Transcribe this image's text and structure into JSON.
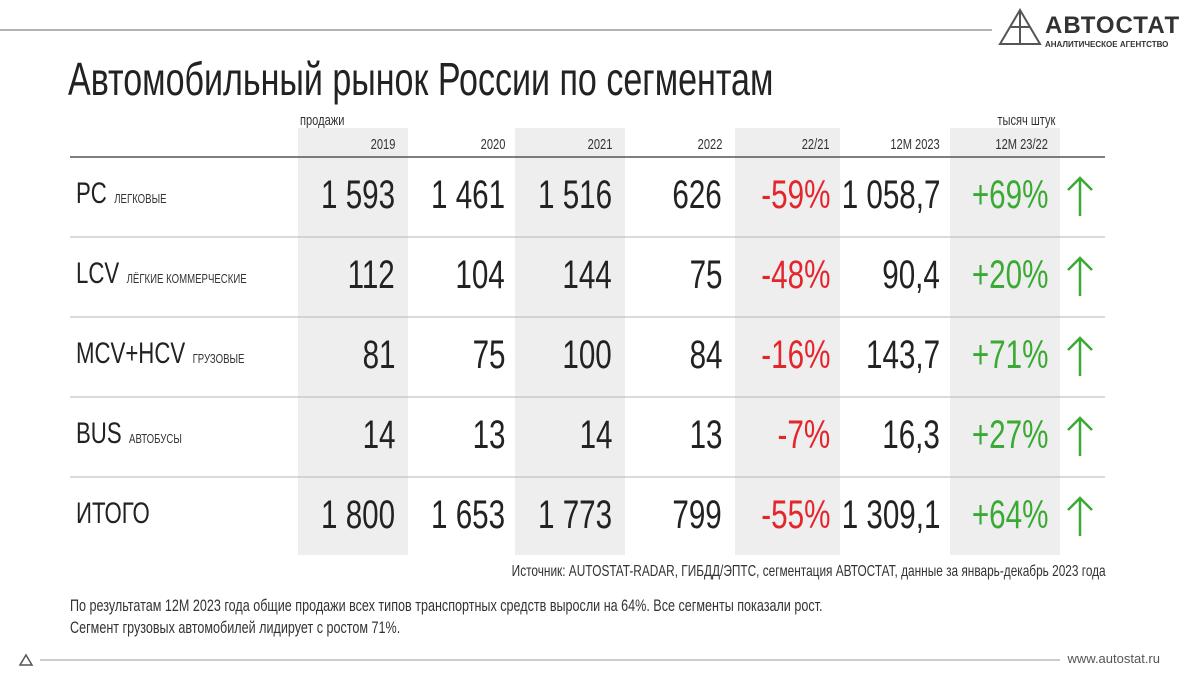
{
  "logo": {
    "name": "АВТОСТАТ",
    "tagline": "АНАЛИТИЧЕСКОЕ АГЕНТСТВО"
  },
  "header": {
    "title": "Автомобильный рынок России по сегментам"
  },
  "table": {
    "caption_left": "продажи",
    "caption_right": "тысяч штук",
    "columns": [
      "2019",
      "2020",
      "2021",
      "2022",
      "22/21",
      "12M 2023",
      "12M 23/22"
    ],
    "rows": [
      {
        "code": "PC",
        "name": "ЛЕГКОВЫЕ",
        "cells": [
          "1 593",
          "1 461",
          "1 516",
          "626",
          "-59%",
          "1 058,7",
          "+69%"
        ]
      },
      {
        "code": "LCV",
        "name": "ЛЁГКИЕ КОММЕРЧЕСКИЕ",
        "cells": [
          "112",
          "104",
          "144",
          "75",
          "-48%",
          "90,4",
          "+20%"
        ]
      },
      {
        "code": "MCV+HCV",
        "name": "ГРУЗОВЫЕ",
        "cells": [
          "81",
          "75",
          "100",
          "84",
          "-16%",
          "143,7",
          "+71%"
        ]
      },
      {
        "code": "BUS",
        "name": "АВТОБУСЫ",
        "cells": [
          "14",
          "13",
          "14",
          "13",
          "-7%",
          "16,3",
          "+27%"
        ]
      },
      {
        "code": "ИТОГО",
        "name": null,
        "cells": [
          "1 800",
          "1 653",
          "1 773",
          "799",
          "-55%",
          "1 309,1",
          "+64%"
        ]
      }
    ]
  },
  "source": "Источник: AUTOSTAT-RADAR, ГИБДД/ЭПТС, сегментация АВТОСТАТ, данные за январь-декабрь 2023 года",
  "summary": [
    "По результатам 12M 2023 года общие продажи всех типов транспортных средств выросли на 64%. Все сегменты показали рост.",
    "Сегмент грузовых автомобилей лидирует с ростом 71%."
  ],
  "footer": {
    "url": "www.autostat.ru"
  }
}
